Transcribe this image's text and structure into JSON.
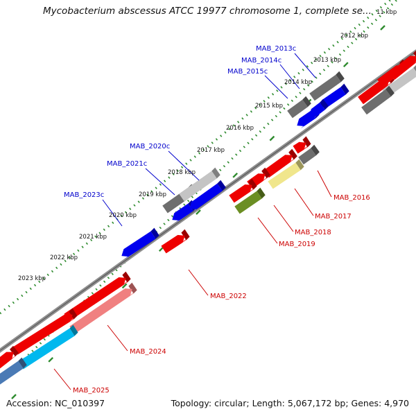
{
  "title": "Mycobacterium abscessus ATCC 19977 chromosome 1, complete se...",
  "footer": {
    "accession": "Accession: NC_010397",
    "topology": "Topology: circular; Length: 5,067,172 bp; Genes: 4,970"
  },
  "colors": {
    "backbone": "#8c8c8c",
    "tick": "#2e8b2e",
    "forward_label": "#0000cc",
    "reverse_label": "#cc0000",
    "red": "#ee0000",
    "pink": "#f08080",
    "blue": "#0000ee",
    "cyan": "#00b8ee",
    "steelblue": "#4a7ab5",
    "gray": "#6e6e6e",
    "lightgray": "#c4c4c4",
    "olive": "#6b8e23",
    "khaki": "#f0e68c"
  },
  "kbp_labels": [
    "11 kbp",
    "2012 kbp",
    "2013 kbp",
    "2014 kbp",
    "2015 kbp",
    "2016 kbp",
    "2017 kbp",
    "2018 kbp",
    "2019 kbp",
    "2020 kbp",
    "2021 kbp",
    "2022 kbp",
    "2023 kbp"
  ],
  "genes_forward": [
    "MAB_2013c",
    "MAB_2014c",
    "MAB_2015c",
    "MAB_2020c",
    "MAB_2021c",
    "MAB_2023c"
  ],
  "genes_reverse": [
    "MAB_2016",
    "MAB_2017",
    "MAB_2018",
    "MAB_2019",
    "MAB_2022",
    "MAB_2024",
    "MAB_2025"
  ]
}
